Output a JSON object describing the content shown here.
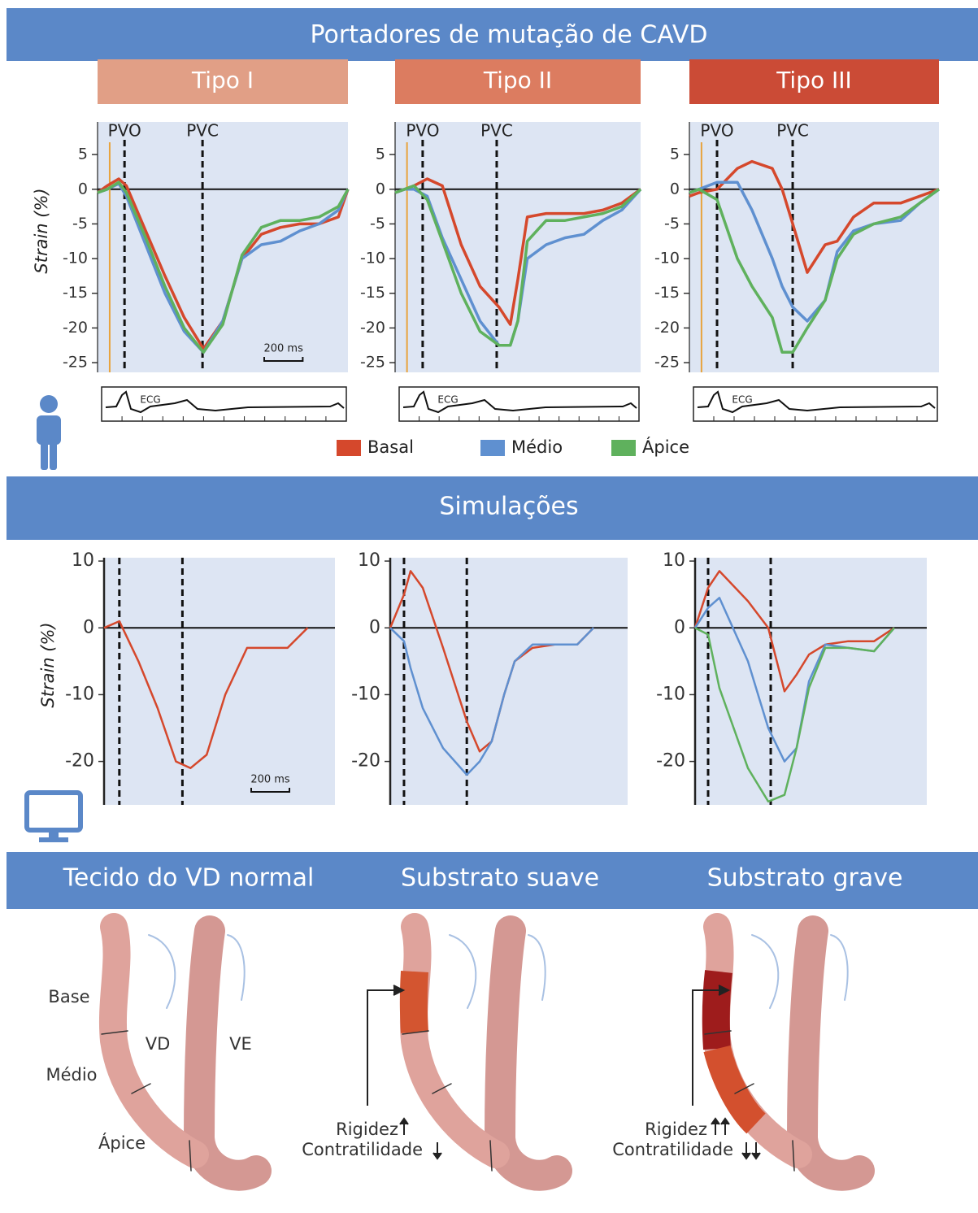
{
  "sections": [
    "Portadores de mutação de CAVD",
    "Simulações"
  ],
  "chart_data": [
    {
      "type": "line",
      "title": "Tipo I",
      "title_color": "#e19f86",
      "y_label": "Strain (%)",
      "ecg_label": "ECG",
      "x": [
        0,
        50,
        110,
        150,
        250,
        350,
        450,
        550,
        650,
        750,
        850,
        950,
        1050,
        1150,
        1250,
        1300
      ],
      "xlim": [
        0,
        1300
      ],
      "ylim": [
        -26.4,
        9.7
      ],
      "yticks": [
        5,
        0,
        -5,
        -10,
        -15,
        -20,
        -25
      ],
      "onset": {
        "x": 63,
        "color": "#e8a33c"
      },
      "markers": [
        {
          "label": "PVO",
          "x": 140
        },
        {
          "label": "PVC",
          "x": 545
        }
      ],
      "scale_bar": {
        "label": "200 ms",
        "length": 200
      },
      "series": [
        {
          "name": "Basal",
          "color": "#d5482c",
          "values": [
            -0.5,
            0.5,
            1.5,
            0.5,
            -6,
            -12.5,
            -18.5,
            -23,
            -19,
            -10,
            -6.5,
            -5.5,
            -5,
            -5,
            -4,
            0
          ]
        },
        {
          "name": "Médio",
          "color": "#5f90d0",
          "values": [
            -0.5,
            0,
            0.8,
            -1,
            -8,
            -15,
            -20.5,
            -23.5,
            -19,
            -10,
            -8,
            -7.5,
            -6,
            -5,
            -3,
            0
          ]
        },
        {
          "name": "Ápice",
          "color": "#5fb15d",
          "values": [
            -0.5,
            0,
            1,
            -0.5,
            -7,
            -14,
            -20,
            -23.5,
            -19.5,
            -9.5,
            -5.5,
            -4.5,
            -4.5,
            -4,
            -2.5,
            0
          ]
        }
      ]
    },
    {
      "type": "line",
      "title": "Tipo  II",
      "title_color": "#dc7c60",
      "ecg_label": "ECG",
      "x": [
        0,
        50,
        100,
        170,
        250,
        350,
        450,
        550,
        610,
        650,
        700,
        800,
        900,
        1000,
        1100,
        1200,
        1300
      ],
      "xlim": [
        0,
        1300
      ],
      "ylim": [
        -26.4,
        9.7
      ],
      "yticks": [
        5,
        0,
        -5,
        -10,
        -15,
        -20,
        -25
      ],
      "onset": {
        "x": 63,
        "color": "#e8a33c"
      },
      "markers": [
        {
          "label": "PVO",
          "x": 146
        },
        {
          "label": "PVC",
          "x": 538
        }
      ],
      "series": [
        {
          "name": "Basal",
          "color": "#d5482c",
          "values": [
            -0.5,
            0,
            0.5,
            1.5,
            0.5,
            -8,
            -14,
            -17,
            -19.5,
            -13,
            -4,
            -3.5,
            -3.5,
            -3.5,
            -3,
            -2,
            0
          ]
        },
        {
          "name": "Médio",
          "color": "#5f90d0",
          "values": [
            -0.5,
            0,
            0,
            -1,
            -7,
            -13,
            -19,
            -22.5,
            -22.5,
            -19,
            -10,
            -8,
            -7,
            -6.5,
            -4.5,
            -3,
            0
          ]
        },
        {
          "name": "Ápice",
          "color": "#5fb15d",
          "values": [
            -0.5,
            0,
            0.5,
            -1.5,
            -7.5,
            -15,
            -20.5,
            -22.5,
            -22.5,
            -19,
            -7.5,
            -4.5,
            -4.5,
            -4,
            -3.5,
            -2.5,
            0
          ]
        }
      ]
    },
    {
      "type": "line",
      "title": "Tipo  III",
      "title_color": "#cb4b36",
      "ecg_label": "ECG",
      "x": [
        0,
        50,
        144,
        250,
        326,
        432,
        483,
        538,
        614,
        707,
        770,
        855,
        960,
        1100,
        1200,
        1300
      ],
      "xlim": [
        0,
        1300
      ],
      "ylim": [
        -26.4,
        9.7
      ],
      "yticks": [
        5,
        0,
        -5,
        -10,
        -15,
        -20,
        -25
      ],
      "onset": {
        "x": 63,
        "color": "#e8a33c"
      },
      "markers": [
        {
          "label": "PVO",
          "x": 144
        },
        {
          "label": "PVC",
          "x": 538
        }
      ],
      "series": [
        {
          "name": "Basal",
          "color": "#d5482c",
          "values": [
            -1,
            -0.5,
            0,
            3,
            4,
            3,
            0,
            -5,
            -12,
            -8,
            -7.5,
            -4,
            -2,
            -2,
            -1,
            0
          ]
        },
        {
          "name": "Médio",
          "color": "#5f90d0",
          "values": [
            -0.5,
            0,
            1,
            1,
            -3,
            -10,
            -14,
            -17,
            -19,
            -16,
            -9,
            -6,
            -5,
            -4.5,
            -2,
            0
          ]
        },
        {
          "name": "Ápice",
          "color": "#5fb15d",
          "values": [
            -0.5,
            0,
            -1.5,
            -10,
            -14,
            -18.5,
            -23.5,
            -23.5,
            -20,
            -16,
            -10,
            -6.5,
            -5,
            -4,
            -2,
            0
          ]
        }
      ]
    },
    {
      "type": "line",
      "y_label": "Strain (%)",
      "x": [
        0,
        80,
        180,
        280,
        376,
        452,
        537,
        634,
        748,
        860,
        960,
        1065
      ],
      "xlim": [
        0,
        1208
      ],
      "ylim": [
        -26.5,
        10.5
      ],
      "yticks": [
        10,
        0,
        -10,
        -20
      ],
      "markers": [
        {
          "x": 80
        },
        {
          "x": 410
        }
      ],
      "scale_bar": {
        "label": "200 ms",
        "length": 200
      },
      "series": [
        {
          "name": "Basal",
          "color": "#d5482c",
          "values": [
            0,
            1,
            -5,
            -12,
            -20,
            -21,
            -19,
            -10,
            -3,
            -3,
            -3,
            0
          ]
        }
      ]
    },
    {
      "type": "line",
      "x": [
        0,
        72,
        106,
        170,
        276,
        400,
        467,
        530,
        595,
        650,
        743,
        860,
        977,
        1062
      ],
      "xlim": [
        0,
        1240
      ],
      "ylim": [
        -26.5,
        10.5
      ],
      "yticks": [
        10,
        0,
        -10,
        -20
      ],
      "markers": [
        {
          "x": 72
        },
        {
          "x": 400
        }
      ],
      "series": [
        {
          "name": "Basal",
          "color": "#d5482c",
          "values": [
            0,
            5,
            8.5,
            6,
            -3,
            -14,
            -18.5,
            -17,
            -10,
            -5,
            -3,
            -2.5,
            -2.5,
            0
          ]
        },
        {
          "name": "Médio",
          "color": "#5f90d0",
          "values": [
            0,
            -2,
            -6,
            -12,
            -18,
            -22,
            -20,
            -17,
            -10,
            -5,
            -2.5,
            -2.5,
            -2.5,
            0
          ]
        }
      ]
    },
    {
      "type": "line",
      "x": [
        0,
        68,
        127,
        276,
        382,
        467,
        530,
        595,
        680,
        800,
        935,
        1040
      ],
      "xlim": [
        0,
        1210
      ],
      "ylim": [
        -26.5,
        10.5
      ],
      "yticks": [
        10,
        0,
        -10,
        -20
      ],
      "markers": [
        {
          "x": 68
        },
        {
          "x": 395
        }
      ],
      "series": [
        {
          "name": "Basal",
          "color": "#d5482c",
          "values": [
            0,
            6,
            8.5,
            4,
            0,
            -9.5,
            -7,
            -4,
            -2.5,
            -2,
            -2,
            0
          ]
        },
        {
          "name": "Médio",
          "color": "#5f90d0",
          "values": [
            0,
            3,
            4.5,
            -5,
            -15,
            -20,
            -18,
            -8,
            -2.5,
            -3,
            -3.5,
            0
          ]
        },
        {
          "name": "Ápice",
          "color": "#5fb15d",
          "values": [
            0,
            -1,
            -9,
            -21,
            -26,
            -25,
            -18,
            -9,
            -3,
            -3,
            -3.5,
            0
          ]
        }
      ]
    }
  ],
  "tissue": {
    "titles": [
      "Tecido do VD normal",
      "Substrato suave",
      "Substrato grave"
    ],
    "labels": {
      "base": "Base",
      "medio": "Médio",
      "apice": "Ápice",
      "vd": "VD",
      "ve": "VE"
    },
    "stiffness": "Rigidez",
    "contractility": "Contratilidade"
  }
}
